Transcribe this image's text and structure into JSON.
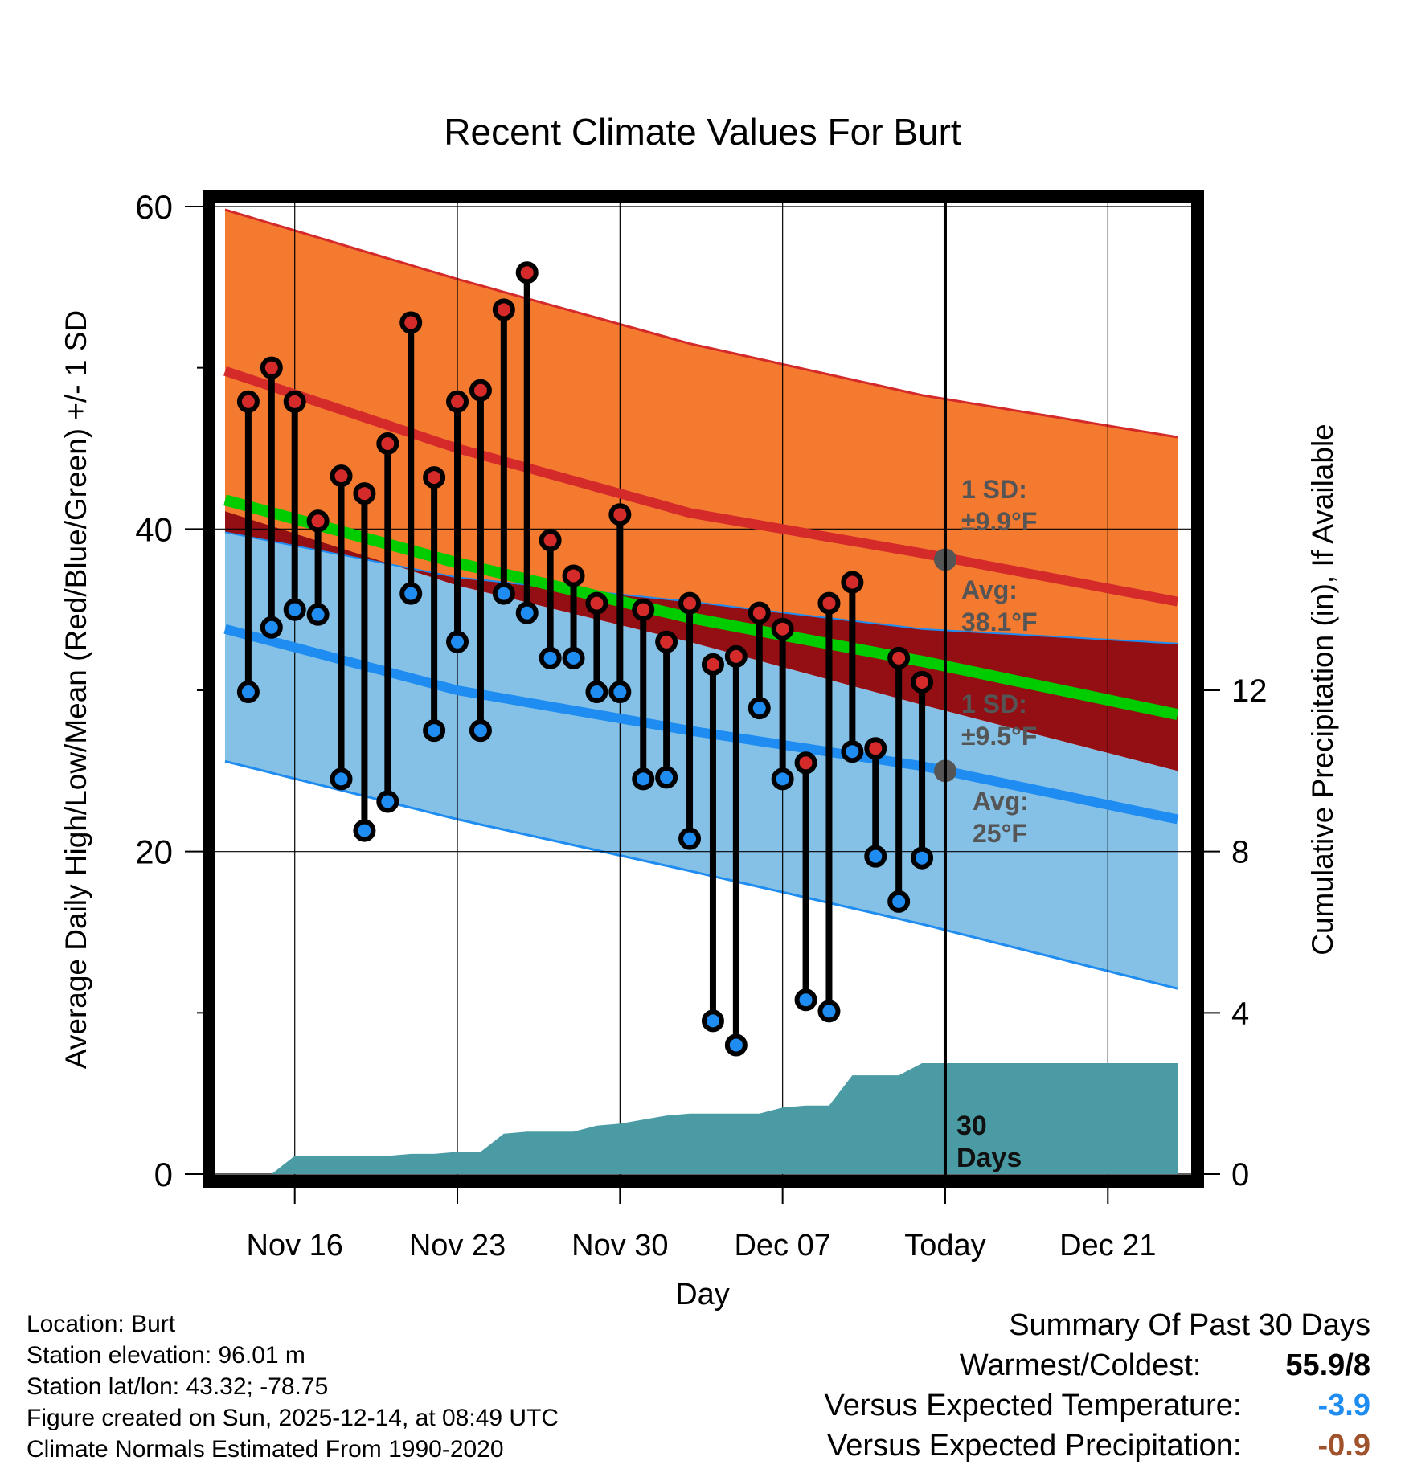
{
  "chart_data": {
    "type": "line",
    "title": "Recent Climate Values For Burt",
    "xlabel": "Day",
    "ylabel_left": "Average Daily High/Low/Mean (Red/Blue/Green) +/- 1 SD",
    "ylabel_right": "Cumulative Precipitation (in), If Available",
    "x_range": [
      0,
      41
    ],
    "ylim_left": [
      0,
      60
    ],
    "ylim_right": [
      0,
      24
    ],
    "y_ticks_left": [
      0,
      20,
      40,
      60
    ],
    "y_ticks_right": [
      0,
      4,
      8,
      12
    ],
    "x_ticks": [
      {
        "x": 3,
        "label": "Nov 16"
      },
      {
        "x": 10,
        "label": "Nov 23"
      },
      {
        "x": 17,
        "label": "Nov 30"
      },
      {
        "x": 24,
        "label": "Dec 07"
      },
      {
        "x": 31,
        "label": "Today"
      },
      {
        "x": 38,
        "label": "Dec 21"
      }
    ],
    "today_x": 31,
    "colors": {
      "high_band": "#f47a30",
      "high_line": "#d42a2a",
      "low_band": "#85c1e7",
      "low_line": "#1e8cf0",
      "overlap": "#930f14",
      "mean_line": "#00cc00",
      "precip": "#4a9ba3",
      "obs_high": "#d42a2a",
      "obs_low": "#1e8cf0",
      "annotation": "#555555",
      "blue_value": "#1e8cf0",
      "brown_value": "#a0522d"
    },
    "normals": {
      "x": [
        0,
        10,
        20,
        30,
        41
      ],
      "high_mean": [
        49.8,
        45.0,
        41.0,
        38.5,
        35.5
      ],
      "high_upper": [
        59.8,
        55.5,
        51.5,
        48.3,
        45.7
      ],
      "high_lower": [
        39.8,
        37.0,
        35.5,
        33.8,
        32.9
      ],
      "low_mean": [
        33.8,
        30.0,
        27.5,
        25.3,
        22.0
      ],
      "low_upper": [
        41.1,
        36.5,
        33.0,
        29.1,
        25.0
      ],
      "low_lower": [
        25.6,
        22.0,
        18.8,
        15.5,
        11.5
      ],
      "mean": [
        41.8,
        37.9,
        34.5,
        31.8,
        28.5
      ]
    },
    "observed": {
      "x": [
        1,
        2,
        3,
        4,
        5,
        6,
        7,
        8,
        9,
        10,
        11,
        12,
        13,
        14,
        15,
        16,
        17,
        18,
        19,
        20,
        21,
        22,
        23,
        24,
        25,
        26,
        27,
        28,
        29,
        30
      ],
      "high": [
        47.9,
        50.0,
        47.9,
        40.5,
        43.3,
        42.2,
        45.3,
        52.8,
        43.2,
        47.9,
        48.6,
        53.6,
        55.9,
        39.3,
        37.1,
        35.4,
        40.9,
        35.0,
        33.0,
        35.4,
        31.6,
        32.1,
        34.8,
        33.8,
        25.5,
        35.4,
        36.7,
        26.4,
        32.0,
        30.5
      ],
      "low": [
        29.9,
        33.9,
        35.0,
        34.7,
        24.5,
        21.3,
        23.1,
        36.0,
        27.5,
        33.0,
        27.5,
        36.0,
        34.8,
        32.0,
        32.0,
        29.9,
        29.9,
        24.5,
        24.6,
        20.8,
        9.5,
        8.0,
        28.9,
        24.5,
        10.8,
        10.1,
        26.2,
        19.7,
        16.9,
        19.6
      ]
    },
    "precip": {
      "x": [
        1,
        2,
        3,
        4,
        5,
        6,
        7,
        8,
        9,
        10,
        11,
        12,
        13,
        14,
        15,
        16,
        17,
        18,
        19,
        20,
        21,
        22,
        23,
        24,
        25,
        26,
        27,
        28,
        29,
        30,
        31,
        32,
        33,
        34,
        35,
        36,
        37,
        38,
        39,
        40,
        41
      ],
      "values": [
        0.0,
        0.0,
        0.45,
        0.45,
        0.45,
        0.45,
        0.45,
        0.5,
        0.5,
        0.55,
        0.55,
        1.0,
        1.05,
        1.05,
        1.05,
        1.2,
        1.25,
        1.35,
        1.45,
        1.5,
        1.5,
        1.5,
        1.5,
        1.65,
        1.7,
        1.7,
        2.45,
        2.45,
        2.45,
        2.75,
        2.75,
        2.75,
        2.75,
        2.75,
        2.75,
        2.75,
        2.75,
        2.75,
        2.75,
        2.75,
        2.75
      ]
    },
    "annotations": {
      "high_sd_label": "1 SD:",
      "high_sd_value": "±9.9°F",
      "high_avg_label": "Avg:",
      "high_avg_value": "38.1°F",
      "high_avg": 38.1,
      "low_sd_label": "1 SD:",
      "low_sd_value": "±9.5°F",
      "low_avg_label": "Avg:",
      "low_avg_value": "25°F",
      "low_avg": 25,
      "days_label_1": "30",
      "days_label_2": "Days"
    }
  },
  "station_info": {
    "location": "Location: Burt",
    "elevation": "Station elevation: 96.01 m",
    "latlon": "Station lat/lon: 43.32; -78.75",
    "created": "Figure created on Sun, 2025-12-14, at 08:49 UTC",
    "normals": "Climate Normals Estimated From 1990-2020"
  },
  "summary": {
    "title": "Summary Of Past 30 Days",
    "warmest_label": "Warmest/Coldest:",
    "warmest_value": "55.9/8",
    "temp_label": "Versus Expected Temperature:",
    "temp_value": "-3.9",
    "precip_label": "Versus Expected Precipitation:",
    "precip_value": "-0.9"
  }
}
